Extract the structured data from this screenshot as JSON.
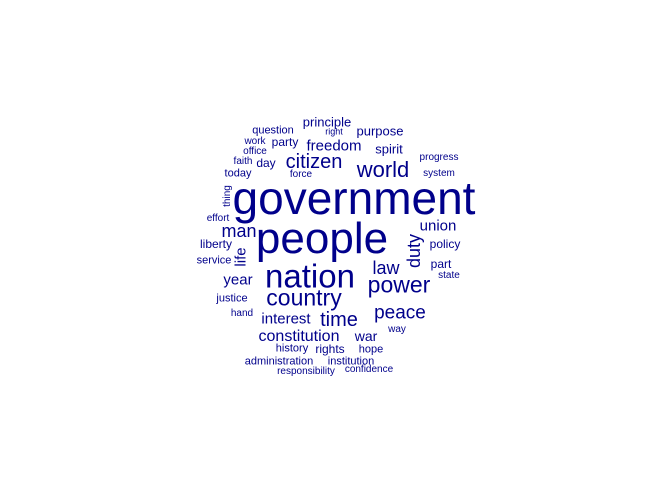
{
  "word_cloud": {
    "color": "#00008b",
    "words": [
      {
        "text": "government",
        "rank": 1
      },
      {
        "text": "people",
        "rank": 2
      },
      {
        "text": "nation",
        "rank": 3
      },
      {
        "text": "country",
        "rank": 4
      },
      {
        "text": "power",
        "rank": 5
      },
      {
        "text": "world",
        "rank": 6
      },
      {
        "text": "citizen",
        "rank": 7
      },
      {
        "text": "time",
        "rank": 8
      },
      {
        "text": "peace",
        "rank": 9
      },
      {
        "text": "law",
        "rank": 10
      },
      {
        "text": "man",
        "rank": 11
      },
      {
        "text": "duty",
        "rank": 12
      },
      {
        "text": "constitution",
        "rank": 13
      },
      {
        "text": "interest",
        "rank": 14
      },
      {
        "text": "freedom",
        "rank": 15
      },
      {
        "text": "life",
        "rank": 16
      },
      {
        "text": "union",
        "rank": 17
      },
      {
        "text": "year",
        "rank": 18
      },
      {
        "text": "war",
        "rank": 19
      },
      {
        "text": "spirit",
        "rank": 20
      },
      {
        "text": "purpose",
        "rank": 21
      },
      {
        "text": "principle",
        "rank": 22
      },
      {
        "text": "party",
        "rank": 23
      },
      {
        "text": "day",
        "rank": 24
      },
      {
        "text": "policy",
        "rank": 25
      },
      {
        "text": "part",
        "rank": 26
      },
      {
        "text": "liberty",
        "rank": 27
      },
      {
        "text": "justice",
        "rank": 28
      },
      {
        "text": "rights",
        "rank": 29
      },
      {
        "text": "history",
        "rank": 30
      },
      {
        "text": "hope",
        "rank": 31
      },
      {
        "text": "question",
        "rank": 32
      },
      {
        "text": "today",
        "rank": 33
      },
      {
        "text": "service",
        "rank": 34
      },
      {
        "text": "administration",
        "rank": 35
      },
      {
        "text": "institution",
        "rank": 36
      },
      {
        "text": "responsibility",
        "rank": 37
      },
      {
        "text": "confidence",
        "rank": 38
      },
      {
        "text": "progress",
        "rank": 39
      },
      {
        "text": "system",
        "rank": 40
      },
      {
        "text": "state",
        "rank": 41
      },
      {
        "text": "way",
        "rank": 42
      },
      {
        "text": "hand",
        "rank": 43
      },
      {
        "text": "effort",
        "rank": 44
      },
      {
        "text": "thing",
        "rank": 45
      },
      {
        "text": "force",
        "rank": 46
      },
      {
        "text": "faith",
        "rank": 47
      },
      {
        "text": "office",
        "rank": 48
      },
      {
        "text": "work",
        "rank": 49
      },
      {
        "text": "right",
        "rank": 50
      }
    ]
  }
}
